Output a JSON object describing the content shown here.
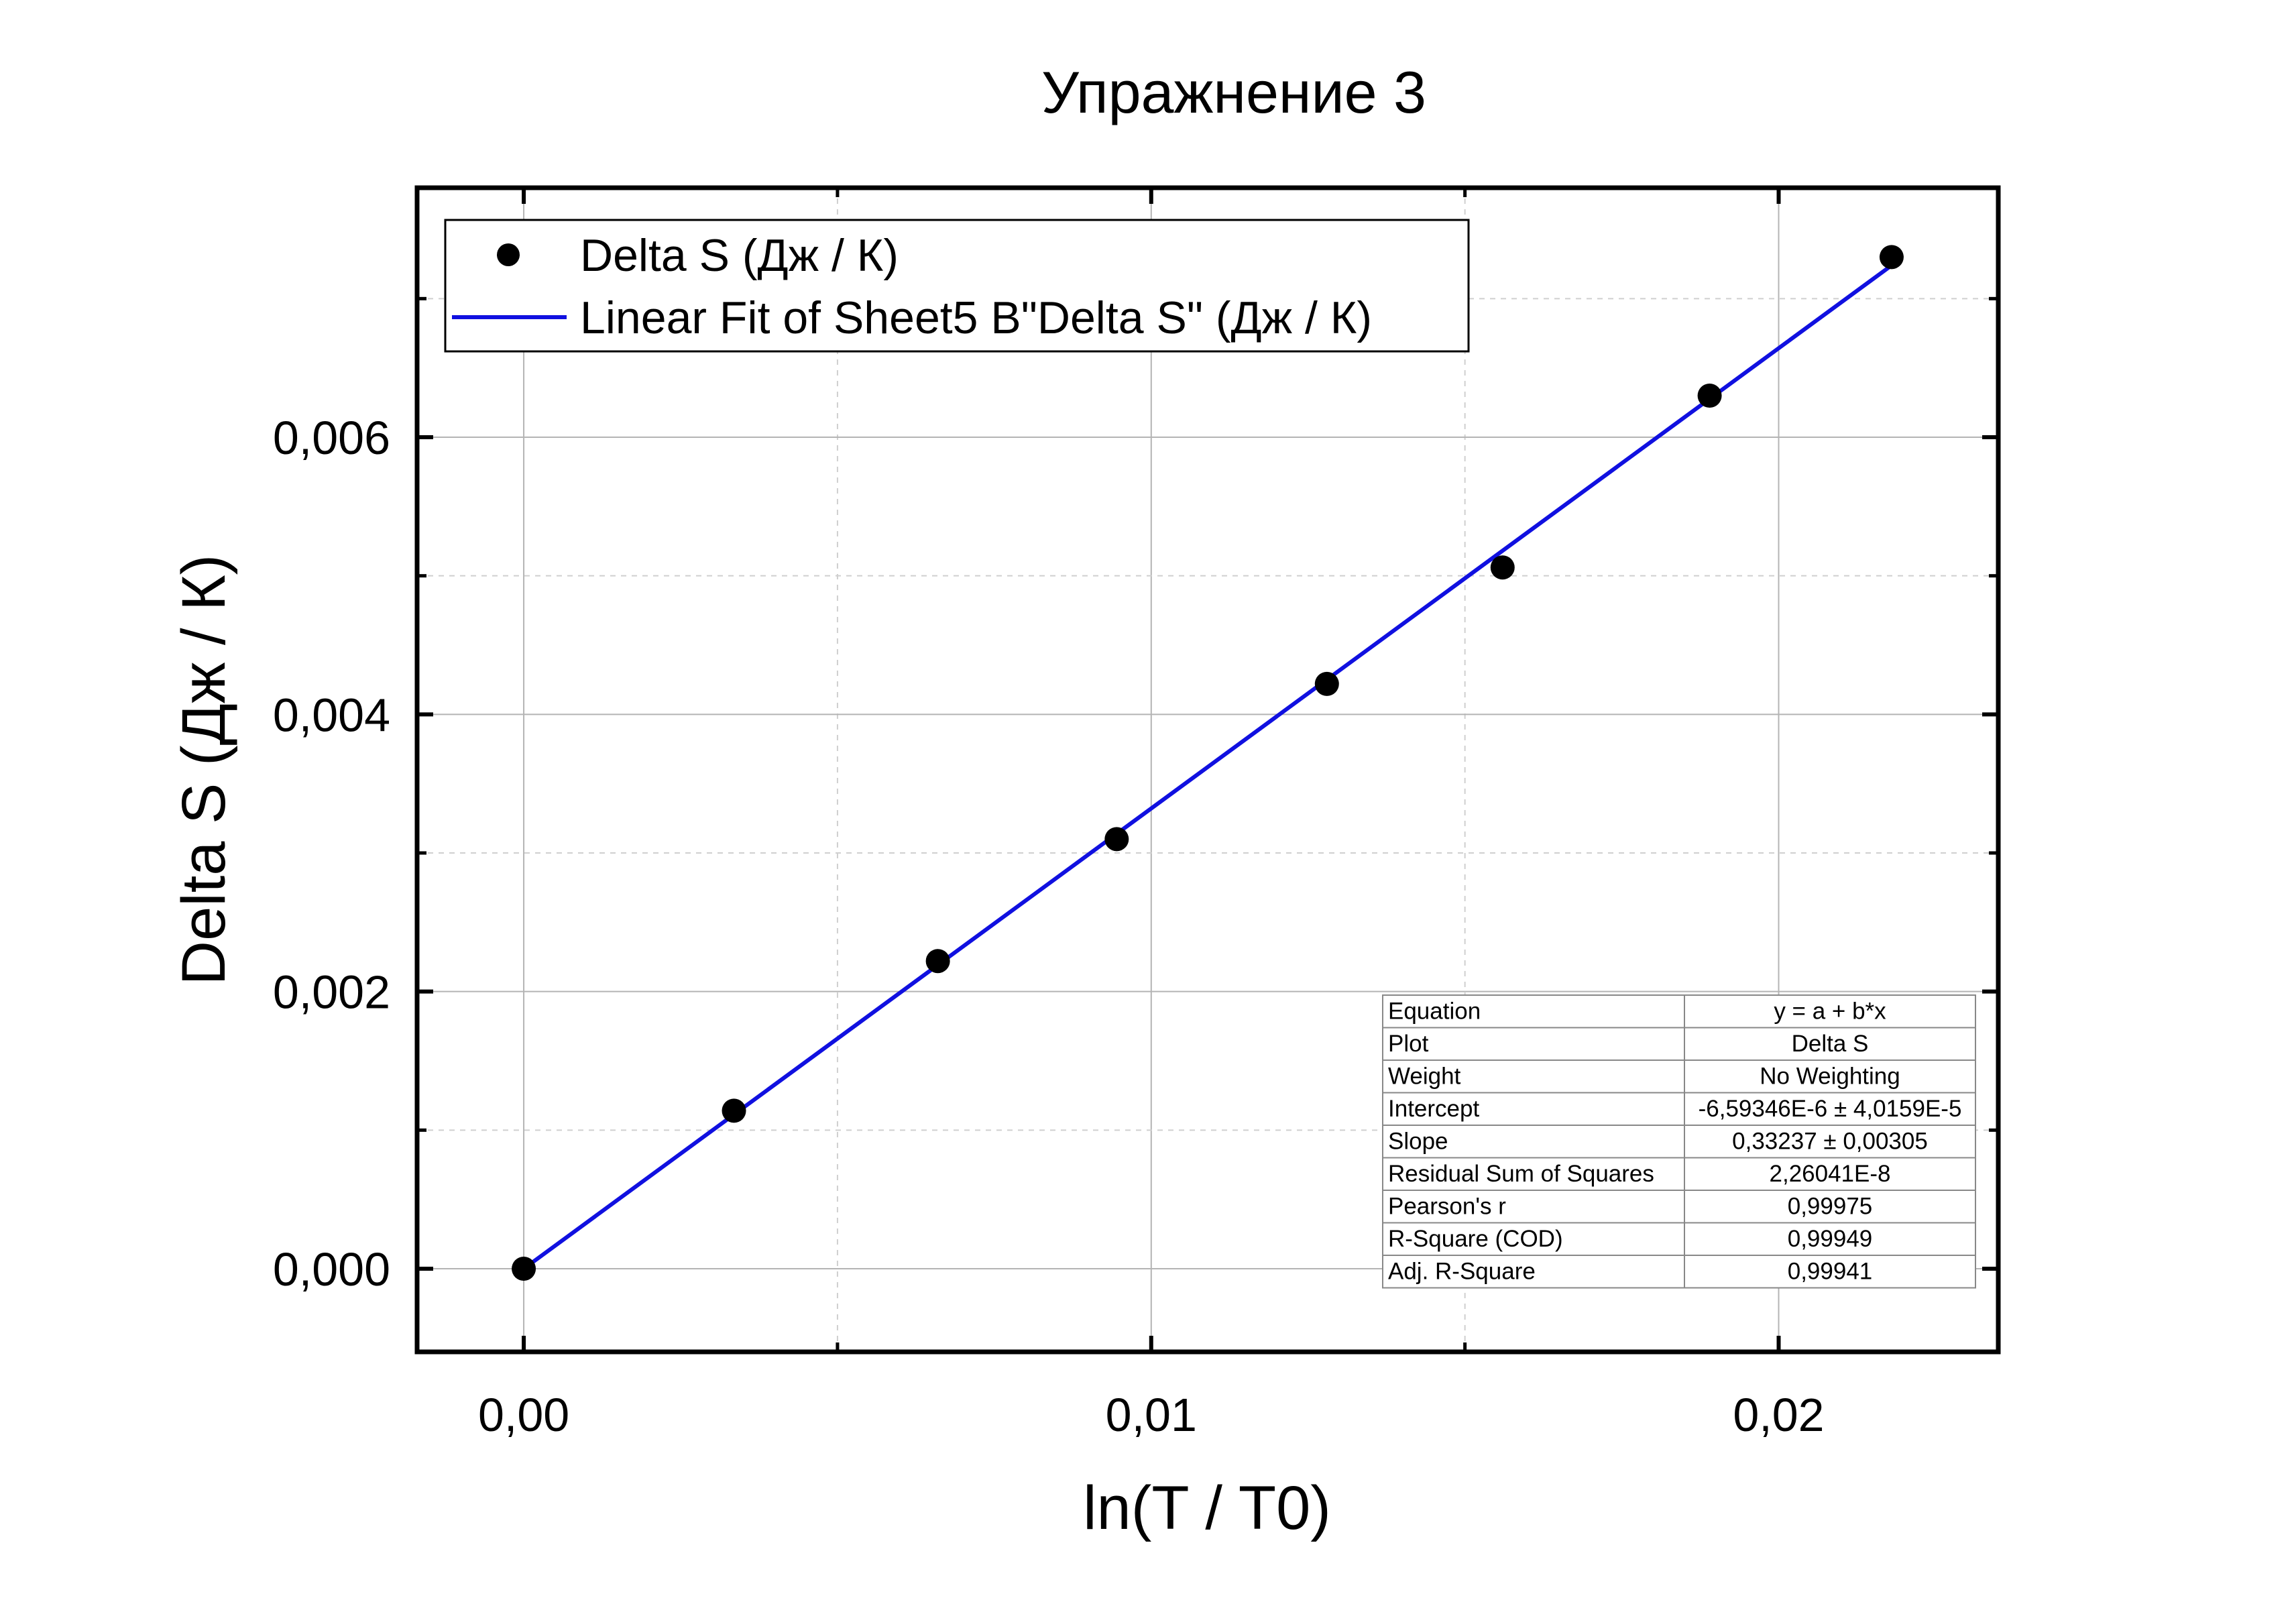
{
  "chart_data": {
    "type": "scatter",
    "title": "Упражнение 3",
    "xlabel": "ln(T / T0)",
    "ylabel": "Delta S (Дж / К)",
    "xlim": [
      -0.0017,
      0.0235
    ],
    "ylim": [
      -0.0006,
      0.0078
    ],
    "x_ticks": [
      0.0,
      0.01,
      0.02
    ],
    "x_tick_labels": [
      "0,00",
      "0,01",
      "0,02"
    ],
    "x_minor_ticks": [
      0.005,
      0.015
    ],
    "y_ticks": [
      0.0,
      0.002,
      0.004,
      0.006
    ],
    "y_tick_labels": [
      "0,000",
      "0,002",
      "0,004",
      "0,006"
    ],
    "y_minor_ticks": [
      0.001,
      0.003,
      0.005,
      0.007
    ],
    "grid": true,
    "legend_position": "top-left",
    "series": [
      {
        "name": "Delta S (Дж / К)",
        "type": "scatter",
        "color": "#000000",
        "x": [
          0.0,
          0.00335,
          0.0066,
          0.00945,
          0.0128,
          0.0156,
          0.0189,
          0.0218
        ],
        "y": [
          0.0,
          0.00114,
          0.00222,
          0.0031,
          0.00422,
          0.00506,
          0.0063,
          0.0073
        ]
      },
      {
        "name": "Linear Fit of Sheet5 B\"Delta S\" (Дж / К)",
        "type": "line",
        "color": "#1010e0",
        "x": [
          0.0,
          0.0218
        ],
        "y": [
          0.0,
          0.00724
        ]
      }
    ],
    "fit_table": [
      {
        "label": "Equation",
        "value": "y = a + b*x"
      },
      {
        "label": "Plot",
        "value": "Delta S"
      },
      {
        "label": "Weight",
        "value": "No Weighting"
      },
      {
        "label": "Intercept",
        "value": "-6,59346E-6 ± 4,0159E-5"
      },
      {
        "label": "Slope",
        "value": "0,33237 ± 0,00305"
      },
      {
        "label": "Residual Sum of Squares",
        "value": "2,26041E-8"
      },
      {
        "label": "Pearson's r",
        "value": "0,99975"
      },
      {
        "label": "R-Square (COD)",
        "value": "0,99949"
      },
      {
        "label": "Adj. R-Square",
        "value": "0,99941"
      }
    ]
  }
}
